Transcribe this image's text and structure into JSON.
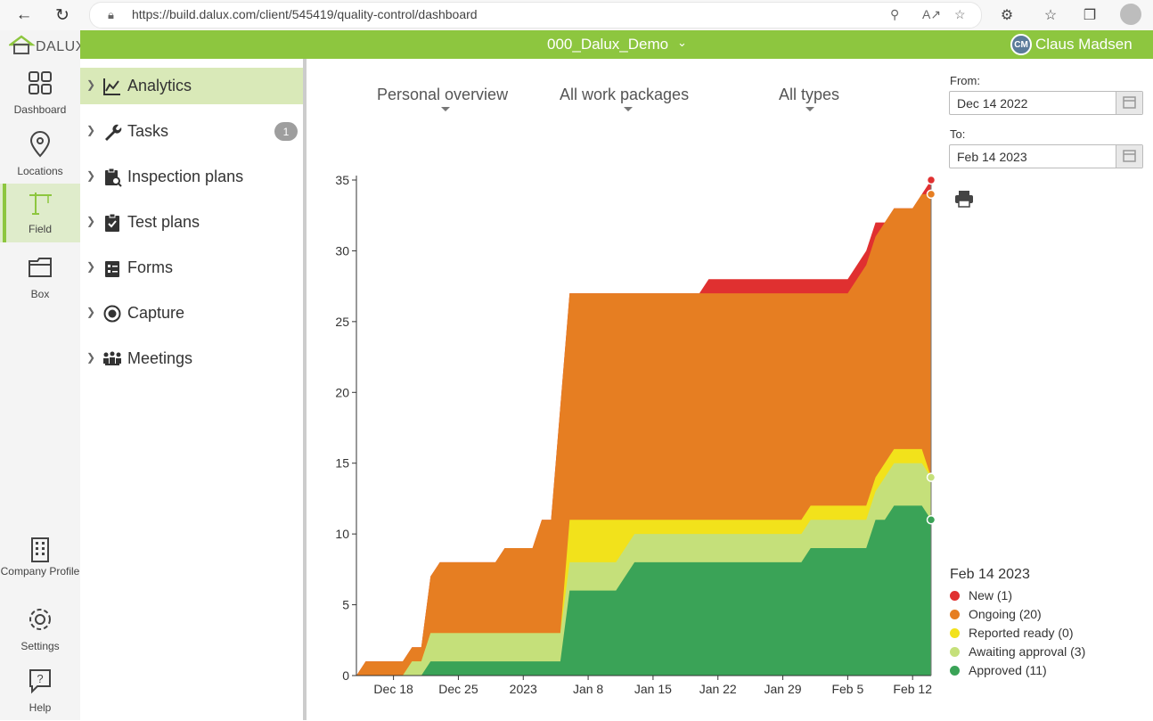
{
  "browser": {
    "url": "https://build.dalux.com/client/545419/quality-control/dashboard"
  },
  "app": {
    "logo_text": "DALUX",
    "project": "000_Dalux_Demo",
    "user_initials": "CM",
    "user_name": "Claus Madsen",
    "accent_color": "#8dc63f"
  },
  "rail": {
    "items": [
      {
        "label": "Dashboard",
        "icon": "dashboard-grid-icon"
      },
      {
        "label": "Locations",
        "icon": "location-pin-icon"
      },
      {
        "label": "Field",
        "icon": "crane-icon",
        "active": true
      },
      {
        "label": "Box",
        "icon": "folder-icon"
      }
    ],
    "bottom": [
      {
        "label": "Company Profile",
        "icon": "building-icon"
      },
      {
        "label": "Settings",
        "icon": "gear-icon"
      },
      {
        "label": "Help",
        "icon": "help-icon"
      }
    ]
  },
  "sidebar": {
    "items": [
      {
        "label": "Analytics",
        "icon": "chart-icon",
        "active": true
      },
      {
        "label": "Tasks",
        "icon": "wrench-icon",
        "badge": "1"
      },
      {
        "label": "Inspection plans",
        "icon": "clipboard-search-icon"
      },
      {
        "label": "Test plans",
        "icon": "clipboard-check-icon"
      },
      {
        "label": "Forms",
        "icon": "form-icon"
      },
      {
        "label": "Capture",
        "icon": "capture-icon"
      },
      {
        "label": "Meetings",
        "icon": "meeting-icon"
      }
    ]
  },
  "filters": {
    "overview": "Personal overview",
    "packages": "All work packages",
    "types": "All types"
  },
  "dates": {
    "from_label": "From:",
    "from_value": "Dec 14 2022",
    "to_label": "To:",
    "to_value": "Feb 14 2023"
  },
  "legend": {
    "date": "Feb 14 2023",
    "items": [
      {
        "label": "New (1)",
        "color": "#e03030"
      },
      {
        "label": "Ongoing (20)",
        "color": "#e67e22"
      },
      {
        "label": "Reported ready (0)",
        "color": "#f2e21b"
      },
      {
        "label": "Awaiting approval (3)",
        "color": "#c5e07a"
      },
      {
        "label": "Approved (11)",
        "color": "#3aa357"
      }
    ]
  },
  "chart_data": {
    "type": "area",
    "stacked": true,
    "x_start": "2022-12-14",
    "x": [
      0,
      1,
      2,
      3,
      4,
      5,
      6,
      7,
      8,
      9,
      10,
      11,
      12,
      13,
      14,
      15,
      16,
      17,
      18,
      19,
      20,
      21,
      22,
      23,
      24,
      25,
      26,
      27,
      28,
      29,
      30,
      31,
      32,
      33,
      34,
      35,
      36,
      37,
      38,
      39,
      40,
      41,
      42,
      43,
      44,
      45,
      46,
      47,
      48,
      49,
      50,
      51,
      52,
      53,
      54,
      55,
      56,
      57,
      58,
      59,
      60,
      61,
      62
    ],
    "xtick_labels": [
      "Dec 18",
      "Dec 25",
      "2023",
      "Jan 8",
      "Jan 15",
      "Jan 22",
      "Jan 29",
      "Feb 5",
      "Feb 12"
    ],
    "xtick_positions": [
      4,
      11,
      18,
      25,
      32,
      39,
      46,
      53,
      60
    ],
    "ylim": [
      0,
      35
    ],
    "yticks": [
      0,
      5,
      10,
      15,
      20,
      25,
      30,
      35
    ],
    "series": [
      {
        "name": "Approved",
        "color": "#3aa357",
        "values": [
          0,
          0,
          0,
          0,
          0,
          0,
          0,
          0,
          1,
          1,
          1,
          1,
          1,
          1,
          1,
          1,
          1,
          1,
          1,
          1,
          1,
          1,
          1,
          6,
          6,
          6,
          6,
          6,
          6,
          7,
          8,
          8,
          8,
          8,
          8,
          8,
          8,
          8,
          8,
          8,
          8,
          8,
          8,
          8,
          8,
          8,
          8,
          8,
          8,
          9,
          9,
          9,
          9,
          9,
          9,
          9,
          11,
          11,
          12,
          12,
          12,
          12,
          11
        ]
      },
      {
        "name": "Awaiting approval",
        "color": "#c5e07a",
        "values": [
          0,
          0,
          0,
          0,
          0,
          0,
          1,
          1,
          2,
          2,
          2,
          2,
          2,
          2,
          2,
          2,
          2,
          2,
          2,
          2,
          2,
          2,
          2,
          2,
          2,
          2,
          2,
          2,
          2,
          2,
          2,
          2,
          2,
          2,
          2,
          2,
          2,
          2,
          2,
          2,
          2,
          2,
          2,
          2,
          2,
          2,
          2,
          2,
          2,
          2,
          2,
          2,
          2,
          2,
          2,
          2,
          2,
          3,
          3,
          3,
          3,
          3,
          3
        ]
      },
      {
        "name": "Reported ready",
        "color": "#f2e21b",
        "values": [
          0,
          0,
          0,
          0,
          0,
          0,
          0,
          0,
          0,
          0,
          0,
          0,
          0,
          0,
          0,
          0,
          0,
          0,
          0,
          0,
          0,
          0,
          0,
          3,
          3,
          3,
          3,
          3,
          3,
          2,
          1,
          1,
          1,
          1,
          1,
          1,
          1,
          1,
          1,
          1,
          1,
          1,
          1,
          1,
          1,
          1,
          1,
          1,
          1,
          1,
          1,
          1,
          1,
          1,
          1,
          1,
          1,
          1,
          1,
          1,
          1,
          1,
          0
        ]
      },
      {
        "name": "Ongoing",
        "color": "#e67e22",
        "values": [
          0,
          1,
          1,
          1,
          1,
          1,
          1,
          1,
          4,
          5,
          5,
          5,
          5,
          5,
          5,
          5,
          6,
          6,
          6,
          6,
          8,
          8,
          16,
          16,
          16,
          16,
          16,
          16,
          16,
          16,
          16,
          16,
          16,
          16,
          16,
          16,
          16,
          16,
          16,
          16,
          16,
          16,
          16,
          16,
          16,
          16,
          16,
          16,
          16,
          15,
          15,
          15,
          15,
          15,
          16,
          17,
          17,
          17,
          17,
          17,
          17,
          18,
          20
        ]
      },
      {
        "name": "New",
        "color": "#e03030",
        "values": [
          0,
          0,
          0,
          0,
          0,
          0,
          0,
          0,
          0,
          0,
          0,
          0,
          0,
          0,
          0,
          0,
          0,
          0,
          0,
          0,
          0,
          0,
          0,
          0,
          0,
          0,
          0,
          0,
          0,
          0,
          0,
          0,
          0,
          0,
          0,
          0,
          0,
          0,
          1,
          1,
          1,
          1,
          1,
          1,
          1,
          1,
          1,
          1,
          1,
          1,
          1,
          1,
          1,
          1,
          1,
          1,
          1,
          0,
          0,
          0,
          0,
          0,
          1
        ]
      }
    ]
  }
}
